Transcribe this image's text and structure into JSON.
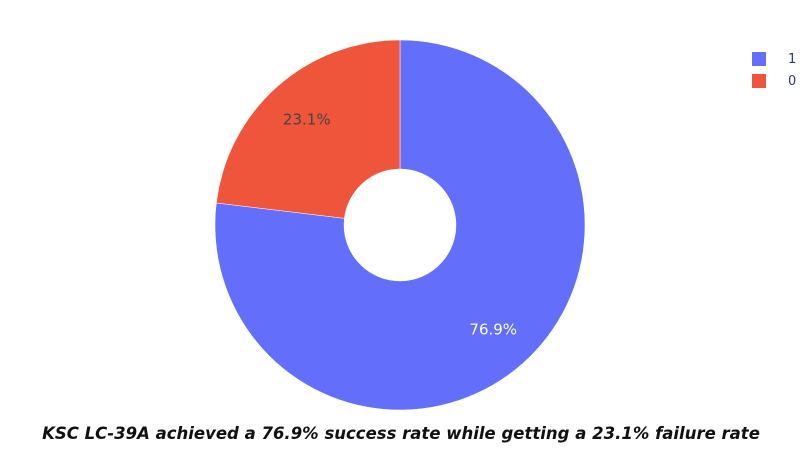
{
  "chart_data": {
    "type": "pie",
    "hole": true,
    "slices": [
      {
        "label": "1",
        "value": 76.9,
        "display": "76.9%",
        "color": "#636efa",
        "text_color": "#ffffff"
      },
      {
        "label": "0",
        "value": 23.1,
        "display": "23.1%",
        "color": "#ef553b",
        "text_color": "#444444"
      }
    ],
    "legend": {
      "placement": "top-right",
      "entries": [
        {
          "label": "1",
          "color": "#636efa"
        },
        {
          "label": "0",
          "color": "#ef553b"
        }
      ]
    }
  },
  "caption": "KSC LC-39A achieved a 76.9% success rate while getting a 23.1% failure rate"
}
